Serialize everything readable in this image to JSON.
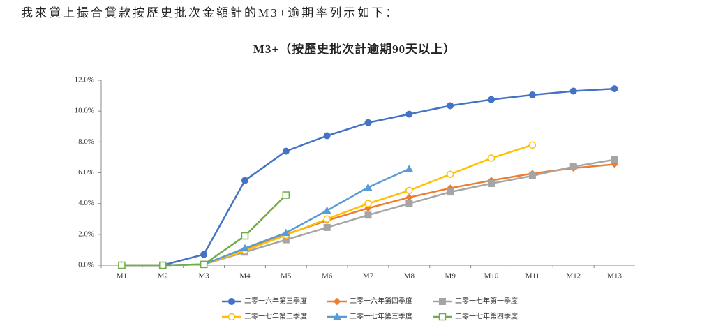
{
  "caption": "我來貸上撮合貸款按歷史批次金額計的M3+逾期率列示如下：",
  "chart_data": {
    "type": "line",
    "title": "M3+（按歷史批次計逾期90天以上）",
    "categories": [
      "M1",
      "M2",
      "M3",
      "M4",
      "M5",
      "M6",
      "M7",
      "M8",
      "M9",
      "M10",
      "M11",
      "M12",
      "M13"
    ],
    "ylim": [
      0,
      12
    ],
    "yticks": [
      {
        "value": 0,
        "label": "0.0%"
      },
      {
        "value": 2,
        "label": "2.0%"
      },
      {
        "value": 4,
        "label": "4.0%"
      },
      {
        "value": 6,
        "label": "6.0%"
      },
      {
        "value": 8,
        "label": "8.0%"
      },
      {
        "value": 10,
        "label": "10.0%"
      },
      {
        "value": 12,
        "label": "12.0%"
      }
    ],
    "grid": false,
    "legend": "bottom",
    "series": [
      {
        "name": "二零一六年第三季度",
        "color": "#4472c4",
        "marker": "circle",
        "values": [
          0,
          0,
          0.7,
          5.5,
          7.4,
          8.4,
          9.25,
          9.8,
          10.35,
          10.75,
          11.05,
          11.3,
          11.45
        ]
      },
      {
        "name": "二零一六年第四季度",
        "color": "#ed7d31",
        "marker": "diamond",
        "values": [
          0,
          0,
          0.05,
          1.05,
          2.0,
          2.9,
          3.7,
          4.4,
          5.0,
          5.5,
          5.95,
          6.3,
          6.55
        ]
      },
      {
        "name": "二零一七年第一季度",
        "color": "#a5a5a5",
        "marker": "square",
        "values": [
          0,
          0,
          0.05,
          0.85,
          1.65,
          2.45,
          3.25,
          4.0,
          4.75,
          5.3,
          5.8,
          6.4,
          6.85
        ]
      },
      {
        "name": "二零一七年第二季度",
        "color": "#ffc000",
        "marker": "circle-open",
        "values": [
          0,
          0,
          0.05,
          0.95,
          1.95,
          3.0,
          4.0,
          4.85,
          5.9,
          6.95,
          7.8,
          null,
          null
        ]
      },
      {
        "name": "二零一七年第三季度",
        "color": "#5b9bd5",
        "marker": "triangle",
        "values": [
          0,
          0,
          0.05,
          1.1,
          2.1,
          3.55,
          5.05,
          6.25,
          null,
          null,
          null,
          null,
          null
        ]
      },
      {
        "name": "二零一七年第四季度",
        "color": "#70ad47",
        "marker": "square-open",
        "values": [
          0,
          0,
          0.05,
          1.9,
          4.55,
          null,
          null,
          null,
          null,
          null,
          null,
          null,
          null
        ]
      }
    ]
  }
}
